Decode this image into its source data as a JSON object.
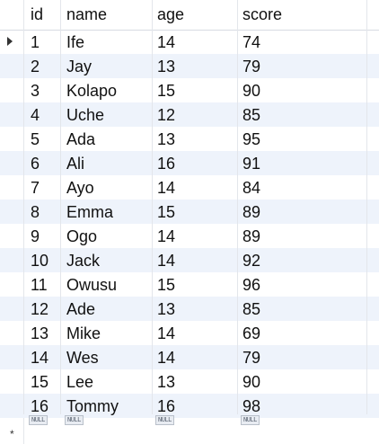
{
  "columns": [
    "id",
    "name",
    "age",
    "score"
  ],
  "rows": [
    {
      "id": "1",
      "name": "Ife",
      "age": "14",
      "score": "74"
    },
    {
      "id": "2",
      "name": "Jay",
      "age": "13",
      "score": "79"
    },
    {
      "id": "3",
      "name": "Kolapo",
      "age": "15",
      "score": "90"
    },
    {
      "id": "4",
      "name": "Uche",
      "age": "12",
      "score": "85"
    },
    {
      "id": "5",
      "name": "Ada",
      "age": "13",
      "score": "95"
    },
    {
      "id": "6",
      "name": "Ali",
      "age": "16",
      "score": "91"
    },
    {
      "id": "7",
      "name": "Ayo",
      "age": "14",
      "score": "84"
    },
    {
      "id": "8",
      "name": "Emma",
      "age": "15",
      "score": "89"
    },
    {
      "id": "9",
      "name": "Ogo",
      "age": "14",
      "score": "89"
    },
    {
      "id": "10",
      "name": "Jack",
      "age": "14",
      "score": "92"
    },
    {
      "id": "11",
      "name": "Owusu",
      "age": "15",
      "score": "96"
    },
    {
      "id": "12",
      "name": "Ade",
      "age": "13",
      "score": "85"
    },
    {
      "id": "13",
      "name": "Mike",
      "age": "14",
      "score": "69"
    },
    {
      "id": "14",
      "name": "Wes",
      "age": "14",
      "score": "79"
    },
    {
      "id": "15",
      "name": "Lee",
      "age": "13",
      "score": "90"
    },
    {
      "id": "16",
      "name": "Tommy",
      "age": "16",
      "score": "98"
    }
  ],
  "null_row": {
    "id": "NULL",
    "name": "NULL",
    "age": "NULL",
    "score": "NULL"
  },
  "new_row_marker": "*",
  "current_row_icon": "row-selector-arrow-icon",
  "colors": {
    "alt_row": "#eef3fb",
    "grid_line": "#e3e6eb",
    "text": "#111111"
  }
}
